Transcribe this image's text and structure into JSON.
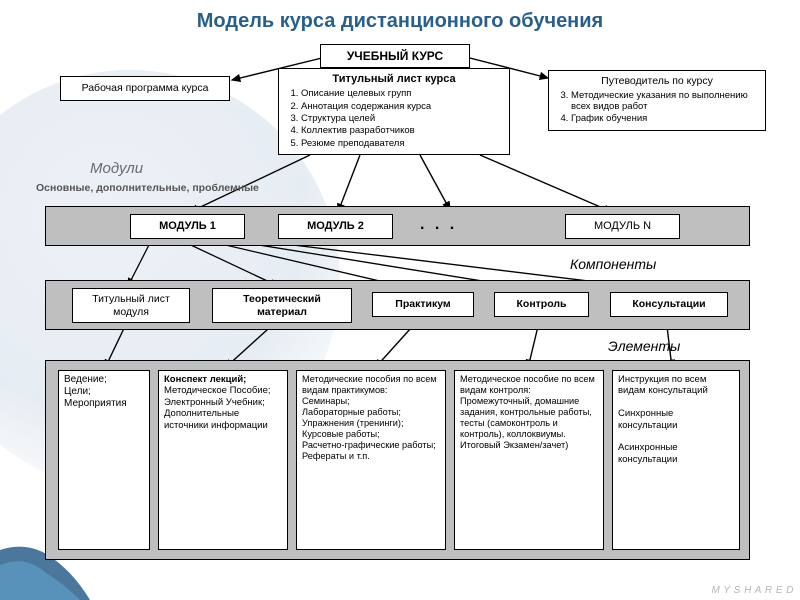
{
  "title": "Модель курса дистанционного обучения",
  "colors": {
    "title": "#2a5f8a",
    "band": "#bfbfbf",
    "box_bg": "#ffffff",
    "border": "#000000",
    "label_gray": "#6a6a6a"
  },
  "top": {
    "course": "УЧЕБНЫЙ КУРС",
    "left_box": "Рабочая программа курса",
    "center_title": "Титульный лист курса",
    "center_items": [
      "Описание целевых групп",
      "Аннотация содержания курса",
      "Структура целей",
      "Коллектив разработчиков",
      "Резюме преподавателя"
    ],
    "right_title": "Путеводитель по курсу",
    "right_items": [
      "Методические указания по выполнению всех видов работ",
      "График обучения"
    ]
  },
  "modules": {
    "label": "Модули",
    "sublabel": "Основные, дополнительные, проблемные",
    "items": [
      "МОДУЛЬ 1",
      "МОДУЛЬ 2",
      ". . .",
      "МОДУЛЬ N"
    ]
  },
  "components": {
    "label": "Компоненты",
    "items": [
      "Титульный лист модуля",
      "Теоретический материал",
      "Практикум",
      "Контроль",
      "Консультации"
    ]
  },
  "elements": {
    "label": "Элементы",
    "cols": [
      "Ведение;\nЦели;\nМероприятия",
      "Конспект лекций;\nМетодическое Пособие;\nЭлектронный Учебник;\nДополнительные источники информации",
      "Методические пособия по всем видам практикумов:\nСеминары;\nЛабораторные работы;\nУпражнения (тренинги);\nКурсовые работы;\nРасчетно-графические работы;\nРефераты и т.п.",
      "Методическое пособие по всем видам контроля:\nПромежуточный, домашние задания, контрольные работы, тесты (самоконтроль и контроль), коллоквиумы.\nИтоговый Экзамен/зачет)",
      "Инструкция по всем видам консультаций\n\nСинхронные консультации\n\nАсинхронные консультации"
    ]
  },
  "watermark": "M Y S H A R E D"
}
